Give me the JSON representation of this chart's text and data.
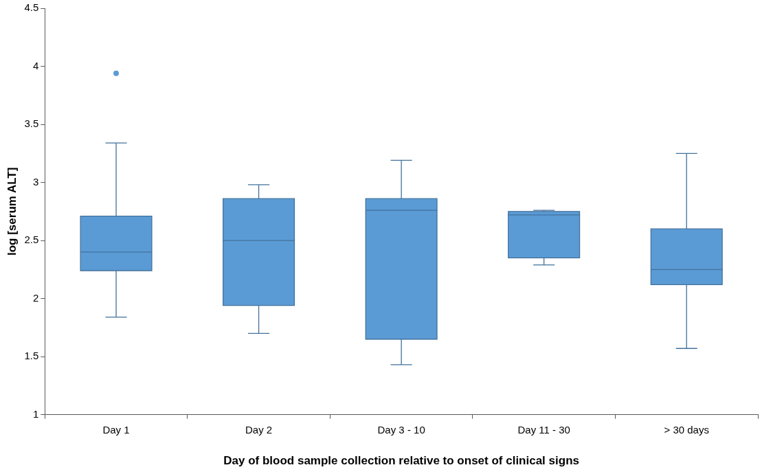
{
  "chart_data": {
    "type": "box",
    "xlabel": "Day of blood sample collection relative to onset of clinical signs",
    "ylabel": "log [serum ALT]",
    "categories": [
      "Day 1",
      "Day 2",
      "Day 3 - 10",
      "Day 11 - 30",
      "> 30 days"
    ],
    "color": "#5b9bd5",
    "boxes": [
      {
        "low": 1.84,
        "q1": 2.24,
        "median": 2.4,
        "q3": 2.71,
        "high": 3.34,
        "outliers": [
          3.94
        ]
      },
      {
        "low": 1.7,
        "q1": 1.94,
        "median": 2.5,
        "q3": 2.86,
        "high": 2.98
      },
      {
        "low": 1.43,
        "q1": 1.65,
        "median": 2.76,
        "q3": 2.86,
        "high": 3.19
      },
      {
        "low": 2.29,
        "q1": 2.35,
        "median": 2.72,
        "q3": 2.75,
        "high": 2.76
      },
      {
        "low": 1.57,
        "q1": 2.12,
        "median": 2.25,
        "q3": 2.6,
        "high": 3.25
      }
    ],
    "ylim": [
      1,
      4.5
    ],
    "yticks": [
      1,
      1.5,
      2,
      2.5,
      3,
      3.5,
      4,
      4.5
    ],
    "grid": false,
    "legend": false
  }
}
